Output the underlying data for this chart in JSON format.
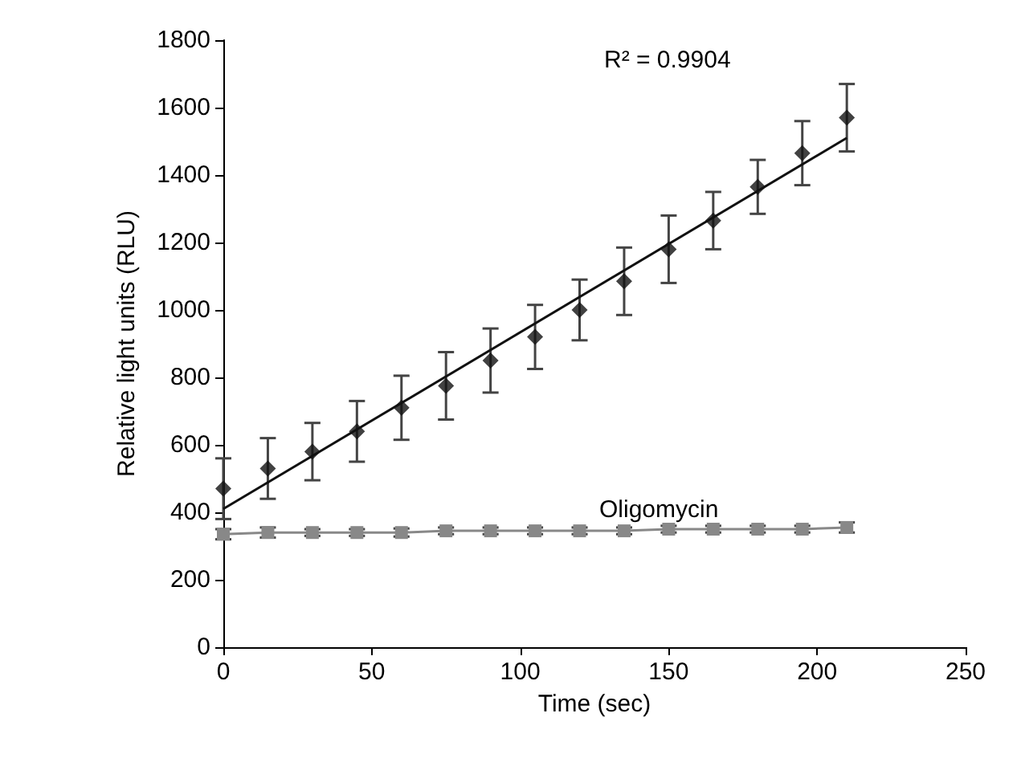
{
  "chart_data": {
    "type": "scatter",
    "xlabel": "Time (sec)",
    "ylabel": "Relative light units (RLU)",
    "x": [
      0,
      15,
      30,
      45,
      60,
      75,
      90,
      105,
      120,
      135,
      150,
      165,
      180,
      195,
      210
    ],
    "series": [
      {
        "color": "#111111",
        "marker": "diamond",
        "values": [
          470,
          530,
          580,
          640,
          710,
          775,
          850,
          920,
          1000,
          1085,
          1180,
          1265,
          1365,
          1465,
          1570
        ],
        "errors": [
          90,
          90,
          85,
          90,
          95,
          100,
          95,
          95,
          90,
          100,
          100,
          85,
          80,
          95,
          100
        ]
      },
      {
        "type": "line",
        "color": "#111111",
        "x": [
          0,
          210
        ],
        "values": [
          410,
          1510
        ],
        "marker": "none"
      },
      {
        "type": "line",
        "color": "#888888",
        "marker": "square",
        "values": [
          335,
          340,
          340,
          340,
          340,
          345,
          345,
          345,
          345,
          345,
          350,
          350,
          350,
          350,
          355
        ],
        "errors": [
          15,
          15,
          10,
          10,
          12,
          10,
          10,
          10,
          10,
          10,
          10,
          10,
          10,
          10,
          15
        ]
      }
    ],
    "xlim": [
      0,
      250
    ],
    "xticks": [
      0,
      50,
      100,
      150,
      200,
      250
    ],
    "ylim": [
      0,
      1800
    ],
    "yticks": [
      0,
      200,
      400,
      600,
      800,
      1000,
      1200,
      1400,
      1600,
      1800
    ],
    "grid": false,
    "annotations": [
      "R² = 0.9904",
      "Oligomycin"
    ]
  }
}
